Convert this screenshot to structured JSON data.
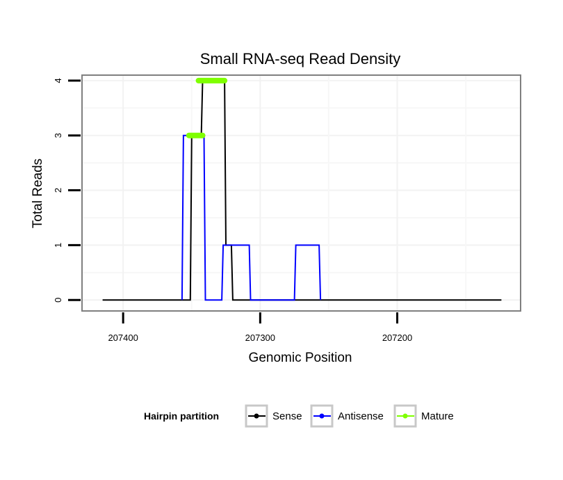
{
  "chart_data": {
    "type": "line",
    "title": "Small RNA-seq Read Density",
    "xlabel": "Genomic Position",
    "ylabel": "Total Reads",
    "xlim": [
      207430,
      207110
    ],
    "ylim": [
      -0.2,
      4.1
    ],
    "x_ticks": [
      207400,
      207300,
      207200
    ],
    "x_tick_labels": [
      "207400",
      "207300",
      "207200"
    ],
    "y_ticks": [
      0,
      1,
      2,
      3,
      4
    ],
    "y_tick_labels": [
      "0",
      "1",
      "2",
      "3",
      "4"
    ],
    "grid": true,
    "legend": {
      "title": "Hairpin partition",
      "position": "bottom",
      "entries": [
        "Sense",
        "Antisense",
        "Mature"
      ]
    },
    "series": [
      {
        "name": "Sense",
        "color": "#000000",
        "x": [
          207415,
          207351,
          207350,
          207343,
          207342,
          207326,
          207325,
          207321,
          207320,
          207124
        ],
        "y": [
          0,
          0,
          3,
          3,
          4,
          4,
          1,
          1,
          0,
          0
        ]
      },
      {
        "name": "Antisense",
        "color": "#0000ff",
        "x": [
          207357,
          207356,
          207341,
          207340,
          207328,
          207327,
          207308,
          207307,
          207275,
          207274,
          207257,
          207256
        ],
        "y": [
          0,
          3,
          3,
          0,
          0,
          1,
          1,
          0,
          0,
          1,
          1,
          0
        ]
      },
      {
        "name": "Mature",
        "color": "#7fff00",
        "segments": [
          {
            "x": [
              207352,
              207342
            ],
            "y": 3
          },
          {
            "x": [
              207345,
              207326
            ],
            "y": 4
          }
        ]
      }
    ]
  }
}
